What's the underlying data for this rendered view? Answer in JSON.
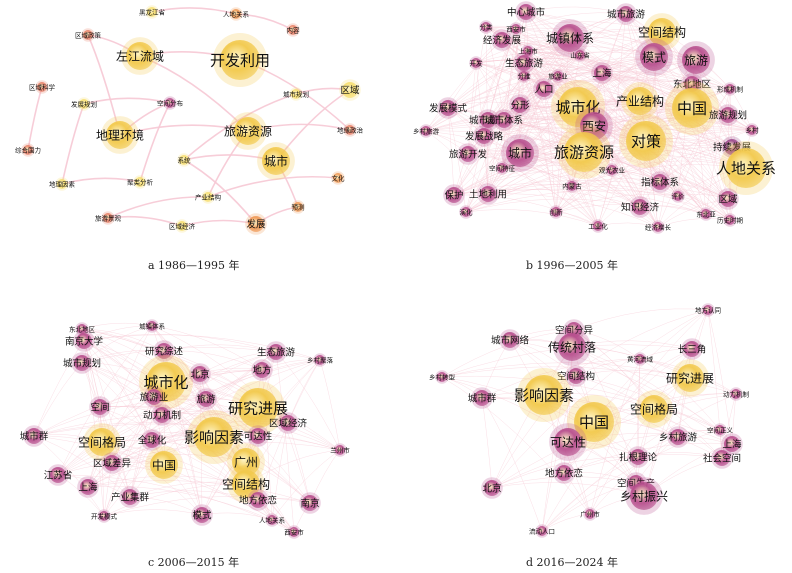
{
  "palette": {
    "yellow": "#f2c94c",
    "light_yellow": "#f7df72",
    "orange": "#ef9a58",
    "salmon": "#e8826a",
    "magenta": "#b8508e",
    "purple": "#9c4a8c",
    "pink_edge": "#f2b7c8",
    "edge": "#f6c8d4"
  },
  "panels": [
    {
      "caption": "a 1986—1995 年",
      "nodes": [
        {
          "label": "黑龙江省",
          "color": "light_yellow",
          "size": "s"
        },
        {
          "label": "人地关系",
          "color": "orange",
          "size": "s"
        },
        {
          "label": "内容",
          "color": "salmon",
          "size": "s"
        },
        {
          "label": "区域政策",
          "color": "salmon",
          "size": "s"
        },
        {
          "label": "左江流域",
          "color": "yellow",
          "size": "l"
        },
        {
          "label": "开发利用",
          "color": "yellow",
          "size": "xl"
        },
        {
          "label": "区域科学",
          "color": "salmon",
          "size": "s"
        },
        {
          "label": "城市规划",
          "color": "light_yellow",
          "size": "s"
        },
        {
          "label": "区域",
          "color": "light_yellow",
          "size": "m"
        },
        {
          "label": "发展规划",
          "color": "light_yellow",
          "size": "s"
        },
        {
          "label": "空间分布",
          "color": "magenta",
          "size": "s"
        },
        {
          "label": "地理环境",
          "color": "yellow",
          "size": "l"
        },
        {
          "label": "旅游资源",
          "color": "yellow",
          "size": "l"
        },
        {
          "label": "地缘政治",
          "color": "salmon",
          "size": "s"
        },
        {
          "label": "综合国力",
          "color": "salmon",
          "size": "s"
        },
        {
          "label": "系统",
          "color": "light_yellow",
          "size": "s"
        },
        {
          "label": "城市",
          "color": "yellow",
          "size": "l"
        },
        {
          "label": "地理因素",
          "color": "light_yellow",
          "size": "s"
        },
        {
          "label": "聚类分析",
          "color": "light_yellow",
          "size": "s"
        },
        {
          "label": "文化",
          "color": "orange",
          "size": "s"
        },
        {
          "label": "产业结构",
          "color": "light_yellow",
          "size": "s"
        },
        {
          "label": "旅游景观",
          "color": "salmon",
          "size": "s"
        },
        {
          "label": "区域经济",
          "color": "light_yellow",
          "size": "s"
        },
        {
          "label": "发展",
          "color": "orange",
          "size": "m"
        },
        {
          "label": "预测",
          "color": "orange",
          "size": "s"
        }
      ]
    },
    {
      "caption": "b 1996—2005 年",
      "nodes": [
        {
          "label": "中心城市",
          "color": "magenta",
          "size": "m"
        },
        {
          "label": "城市旅游",
          "color": "magenta",
          "size": "m"
        },
        {
          "label": "西安市",
          "color": "magenta",
          "size": "s"
        },
        {
          "label": "分类",
          "color": "magenta",
          "size": "s"
        },
        {
          "label": "经济发展",
          "color": "magenta",
          "size": "m"
        },
        {
          "label": "城镇体系",
          "color": "magenta",
          "size": "l"
        },
        {
          "label": "空间结构",
          "color": "yellow",
          "size": "l"
        },
        {
          "label": "上海市",
          "color": "magenta",
          "size": "s"
        },
        {
          "label": "山东省",
          "color": "magenta",
          "size": "s"
        },
        {
          "label": "开发",
          "color": "magenta",
          "size": "s"
        },
        {
          "label": "生态旅游",
          "color": "magenta",
          "size": "m"
        },
        {
          "label": "模式",
          "color": "magenta",
          "size": "l"
        },
        {
          "label": "旅游",
          "color": "magenta",
          "size": "l"
        },
        {
          "label": "上海",
          "color": "magenta",
          "size": "m"
        },
        {
          "label": "分维",
          "color": "magenta",
          "size": "s"
        },
        {
          "label": "旅游业",
          "color": "magenta",
          "size": "s"
        },
        {
          "label": "东北地区",
          "color": "magenta",
          "size": "m"
        },
        {
          "label": "人口",
          "color": "magenta",
          "size": "m"
        },
        {
          "label": "产业结构",
          "color": "yellow",
          "size": "l"
        },
        {
          "label": "形成机制",
          "color": "magenta",
          "size": "s"
        },
        {
          "label": "发展模式",
          "color": "magenta",
          "size": "m"
        },
        {
          "label": "分形",
          "color": "magenta",
          "size": "m"
        },
        {
          "label": "城市化",
          "color": "yellow",
          "size": "xl"
        },
        {
          "label": "中国",
          "color": "yellow",
          "size": "xl"
        },
        {
          "label": "城市规划",
          "color": "magenta",
          "size": "m"
        },
        {
          "label": "城市体系",
          "color": "magenta",
          "size": "m"
        },
        {
          "label": "旅游规划",
          "color": "magenta",
          "size": "m"
        },
        {
          "label": "乡村旅游",
          "color": "magenta",
          "size": "s"
        },
        {
          "label": "西安",
          "color": "magenta",
          "size": "l"
        },
        {
          "label": "乡村",
          "color": "magenta",
          "size": "s"
        },
        {
          "label": "发展战略",
          "color": "magenta",
          "size": "m"
        },
        {
          "label": "对策",
          "color": "yellow",
          "size": "xl"
        },
        {
          "label": "持续发展",
          "color": "purple",
          "size": "m"
        },
        {
          "label": "城市",
          "color": "magenta",
          "size": "l"
        },
        {
          "label": "旅游开发",
          "color": "magenta",
          "size": "m"
        },
        {
          "label": "旅游资源",
          "color": "yellow",
          "size": "xl"
        },
        {
          "label": "空间特征",
          "color": "magenta",
          "size": "s"
        },
        {
          "label": "人地关系",
          "color": "yellow",
          "size": "xl"
        },
        {
          "label": "观光农业",
          "color": "magenta",
          "size": "s"
        },
        {
          "label": "保护",
          "color": "magenta",
          "size": "m"
        },
        {
          "label": "土地利用",
          "color": "magenta",
          "size": "m"
        },
        {
          "label": "内蒙古",
          "color": "magenta",
          "size": "s"
        },
        {
          "label": "指标体系",
          "color": "magenta",
          "size": "m"
        },
        {
          "label": "区域",
          "color": "magenta",
          "size": "m"
        },
        {
          "label": "评价",
          "color": "magenta",
          "size": "s"
        },
        {
          "label": "演化",
          "color": "magenta",
          "size": "s"
        },
        {
          "label": "知识经济",
          "color": "magenta",
          "size": "m"
        },
        {
          "label": "东北亚",
          "color": "magenta",
          "size": "s"
        },
        {
          "label": "创新",
          "color": "magenta",
          "size": "s"
        },
        {
          "label": "工业化",
          "color": "magenta",
          "size": "s"
        },
        {
          "label": "经济增长",
          "color": "magenta",
          "size": "s"
        },
        {
          "label": "历史时期",
          "color": "magenta",
          "size": "s"
        }
      ]
    },
    {
      "caption": "c 2006—2015 年",
      "nodes": [
        {
          "label": "东北地区",
          "color": "magenta",
          "size": "s"
        },
        {
          "label": "城镇体系",
          "color": "magenta",
          "size": "s"
        },
        {
          "label": "南京大学",
          "color": "magenta",
          "size": "m"
        },
        {
          "label": "生态旅游",
          "color": "magenta",
          "size": "m"
        },
        {
          "label": "研究综述",
          "color": "magenta",
          "size": "m"
        },
        {
          "label": "城市规划",
          "color": "magenta",
          "size": "m"
        },
        {
          "label": "城市化",
          "color": "yellow",
          "size": "xl"
        },
        {
          "label": "北京",
          "color": "magenta",
          "size": "m"
        },
        {
          "label": "地方",
          "color": "magenta",
          "size": "m"
        },
        {
          "label": "旅游业",
          "color": "magenta",
          "size": "m"
        },
        {
          "label": "研究进展",
          "color": "yellow",
          "size": "xl"
        },
        {
          "label": "旅游",
          "color": "magenta",
          "size": "m"
        },
        {
          "label": "空间",
          "color": "magenta",
          "size": "m"
        },
        {
          "label": "动力机制",
          "color": "magenta",
          "size": "m"
        },
        {
          "label": "区域经济",
          "color": "magenta",
          "size": "m"
        },
        {
          "label": "城市群",
          "color": "magenta",
          "size": "m"
        },
        {
          "label": "空间格局",
          "color": "yellow",
          "size": "l"
        },
        {
          "label": "影响因素",
          "color": "yellow",
          "size": "xl"
        },
        {
          "label": "全球化",
          "color": "magenta",
          "size": "m"
        },
        {
          "label": "可达性",
          "color": "magenta",
          "size": "m"
        },
        {
          "label": "广州",
          "color": "yellow",
          "size": "l"
        },
        {
          "label": "区域差异",
          "color": "magenta",
          "size": "m"
        },
        {
          "label": "中国",
          "color": "yellow",
          "size": "l"
        },
        {
          "label": "上海",
          "color": "magenta",
          "size": "m"
        },
        {
          "label": "空间结构",
          "color": "yellow",
          "size": "l"
        },
        {
          "label": "产业集群",
          "color": "magenta",
          "size": "m"
        },
        {
          "label": "地方依恋",
          "color": "magenta",
          "size": "m"
        },
        {
          "label": "南京",
          "color": "magenta",
          "size": "m"
        },
        {
          "label": "开发模式",
          "color": "magenta",
          "size": "s"
        },
        {
          "label": "模式",
          "color": "magenta",
          "size": "m"
        },
        {
          "label": "人地关系",
          "color": "magenta",
          "size": "s"
        },
        {
          "label": "西安市",
          "color": "magenta",
          "size": "s"
        },
        {
          "label": "江苏省",
          "color": "magenta",
          "size": "m"
        },
        {
          "label": "乡村聚落",
          "color": "magenta",
          "size": "s"
        },
        {
          "label": "兰州市",
          "color": "magenta",
          "size": "s"
        }
      ]
    },
    {
      "caption": "d 2016—2024 年",
      "nodes": [
        {
          "label": "地方认同",
          "color": "magenta",
          "size": "s"
        },
        {
          "label": "空间分异",
          "color": "magenta",
          "size": "m"
        },
        {
          "label": "城市网络",
          "color": "magenta",
          "size": "m"
        },
        {
          "label": "传统村落",
          "color": "magenta",
          "size": "l"
        },
        {
          "label": "长三角",
          "color": "magenta",
          "size": "m"
        },
        {
          "label": "黄河流域",
          "color": "magenta",
          "size": "s"
        },
        {
          "label": "空间结构",
          "color": "magenta",
          "size": "m"
        },
        {
          "label": "研究进展",
          "color": "yellow",
          "size": "l"
        },
        {
          "label": "乡村转型",
          "color": "magenta",
          "size": "s"
        },
        {
          "label": "城市群",
          "color": "magenta",
          "size": "m"
        },
        {
          "label": "影响因素",
          "color": "yellow",
          "size": "xl"
        },
        {
          "label": "空间格局",
          "color": "yellow",
          "size": "l"
        },
        {
          "label": "动力机制",
          "color": "magenta",
          "size": "s"
        },
        {
          "label": "中国",
          "color": "yellow",
          "size": "xl"
        },
        {
          "label": "乡村旅游",
          "color": "magenta",
          "size": "m"
        },
        {
          "label": "空间正义",
          "color": "magenta",
          "size": "s"
        },
        {
          "label": "上海",
          "color": "magenta",
          "size": "m"
        },
        {
          "label": "可达性",
          "color": "magenta",
          "size": "l"
        },
        {
          "label": "扎根理论",
          "color": "magenta",
          "size": "m"
        },
        {
          "label": "社会空间",
          "color": "magenta",
          "size": "m"
        },
        {
          "label": "地方依恋",
          "color": "magenta",
          "size": "m"
        },
        {
          "label": "空间生产",
          "color": "magenta",
          "size": "m"
        },
        {
          "label": "北京",
          "color": "magenta",
          "size": "m"
        },
        {
          "label": "乡村振兴",
          "color": "magenta",
          "size": "l"
        },
        {
          "label": "广州市",
          "color": "magenta",
          "size": "s"
        },
        {
          "label": "流动人口",
          "color": "magenta",
          "size": "s"
        }
      ]
    }
  ]
}
